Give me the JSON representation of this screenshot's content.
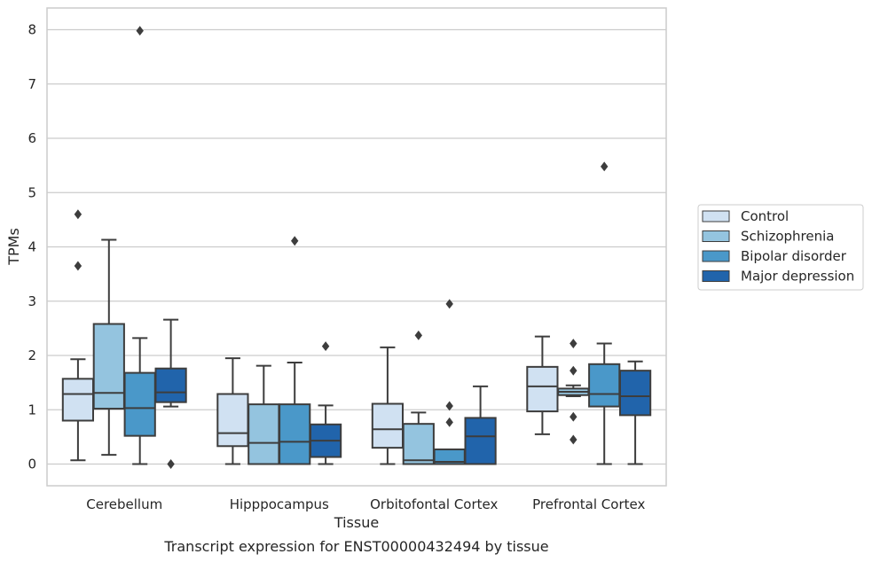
{
  "caption": "Transcript expression for ENST00000432494 by tissue",
  "chart_data": {
    "type": "boxplot",
    "title": "",
    "xlabel": "Tissue",
    "ylabel": "TPMs",
    "ylim": [
      -0.4,
      8.4
    ],
    "yticks": [
      0,
      1,
      2,
      3,
      4,
      5,
      6,
      7,
      8
    ],
    "grid": "horizontal",
    "legend_position": "right",
    "categories": [
      "Cerebellum",
      "Hipppocampus",
      "Orbitofontal Cortex",
      "Prefrontal Cortex"
    ],
    "series": [
      {
        "name": "Control",
        "color": "#d0e1f2",
        "boxes": [
          {
            "whislo": 0.07,
            "q1": 0.8,
            "med": 1.29,
            "q3": 1.57,
            "whishi": 1.93,
            "fliers": [
              4.6,
              3.65
            ]
          },
          {
            "whislo": 0.0,
            "q1": 0.33,
            "med": 0.57,
            "q3": 1.29,
            "whishi": 1.95,
            "fliers": []
          },
          {
            "whislo": 0.0,
            "q1": 0.3,
            "med": 0.64,
            "q3": 1.11,
            "whishi": 2.15,
            "fliers": []
          },
          {
            "whislo": 0.55,
            "q1": 0.97,
            "med": 1.43,
            "q3": 1.79,
            "whishi": 2.35,
            "fliers": []
          }
        ]
      },
      {
        "name": "Schizophrenia",
        "color": "#94c4df",
        "boxes": [
          {
            "whislo": 0.17,
            "q1": 1.02,
            "med": 1.31,
            "q3": 2.58,
            "whishi": 4.13,
            "fliers": []
          },
          {
            "whislo": 0.0,
            "q1": 0.0,
            "med": 0.39,
            "q3": 1.1,
            "whishi": 1.81,
            "fliers": []
          },
          {
            "whislo": 0.0,
            "q1": 0.0,
            "med": 0.07,
            "q3": 0.74,
            "whishi": 0.95,
            "fliers": [
              2.37
            ]
          },
          {
            "whislo": 1.25,
            "q1": 1.27,
            "med": 1.33,
            "q3": 1.39,
            "whishi": 1.45,
            "fliers": [
              2.22,
              1.72,
              0.87,
              0.45
            ]
          }
        ]
      },
      {
        "name": "Bipolar disorder",
        "color": "#4a98c9",
        "boxes": [
          {
            "whislo": 0.0,
            "q1": 0.52,
            "med": 1.03,
            "q3": 1.68,
            "whishi": 2.32,
            "fliers": [
              7.98
            ]
          },
          {
            "whislo": 0.0,
            "q1": 0.0,
            "med": 0.41,
            "q3": 1.1,
            "whishi": 1.87,
            "fliers": [
              4.11
            ]
          },
          {
            "whislo": 0.0,
            "q1": 0.0,
            "med": 0.04,
            "q3": 0.27,
            "whishi": 0.27,
            "fliers": [
              2.95,
              1.07,
              0.77
            ]
          },
          {
            "whislo": 0.0,
            "q1": 1.06,
            "med": 1.29,
            "q3": 1.84,
            "whishi": 2.22,
            "fliers": [
              5.48
            ]
          }
        ]
      },
      {
        "name": "Major depression",
        "color": "#2164ab",
        "boxes": [
          {
            "whislo": 1.06,
            "q1": 1.14,
            "med": 1.32,
            "q3": 1.76,
            "whishi": 2.66,
            "fliers": [
              0.0
            ]
          },
          {
            "whislo": 0.0,
            "q1": 0.13,
            "med": 0.43,
            "q3": 0.73,
            "whishi": 1.08,
            "fliers": [
              2.17
            ]
          },
          {
            "whislo": 0.0,
            "q1": 0.0,
            "med": 0.51,
            "q3": 0.85,
            "whishi": 1.43,
            "fliers": []
          },
          {
            "whislo": 0.0,
            "q1": 0.9,
            "med": 1.25,
            "q3": 1.72,
            "whishi": 1.89,
            "fliers": []
          }
        ]
      }
    ]
  }
}
